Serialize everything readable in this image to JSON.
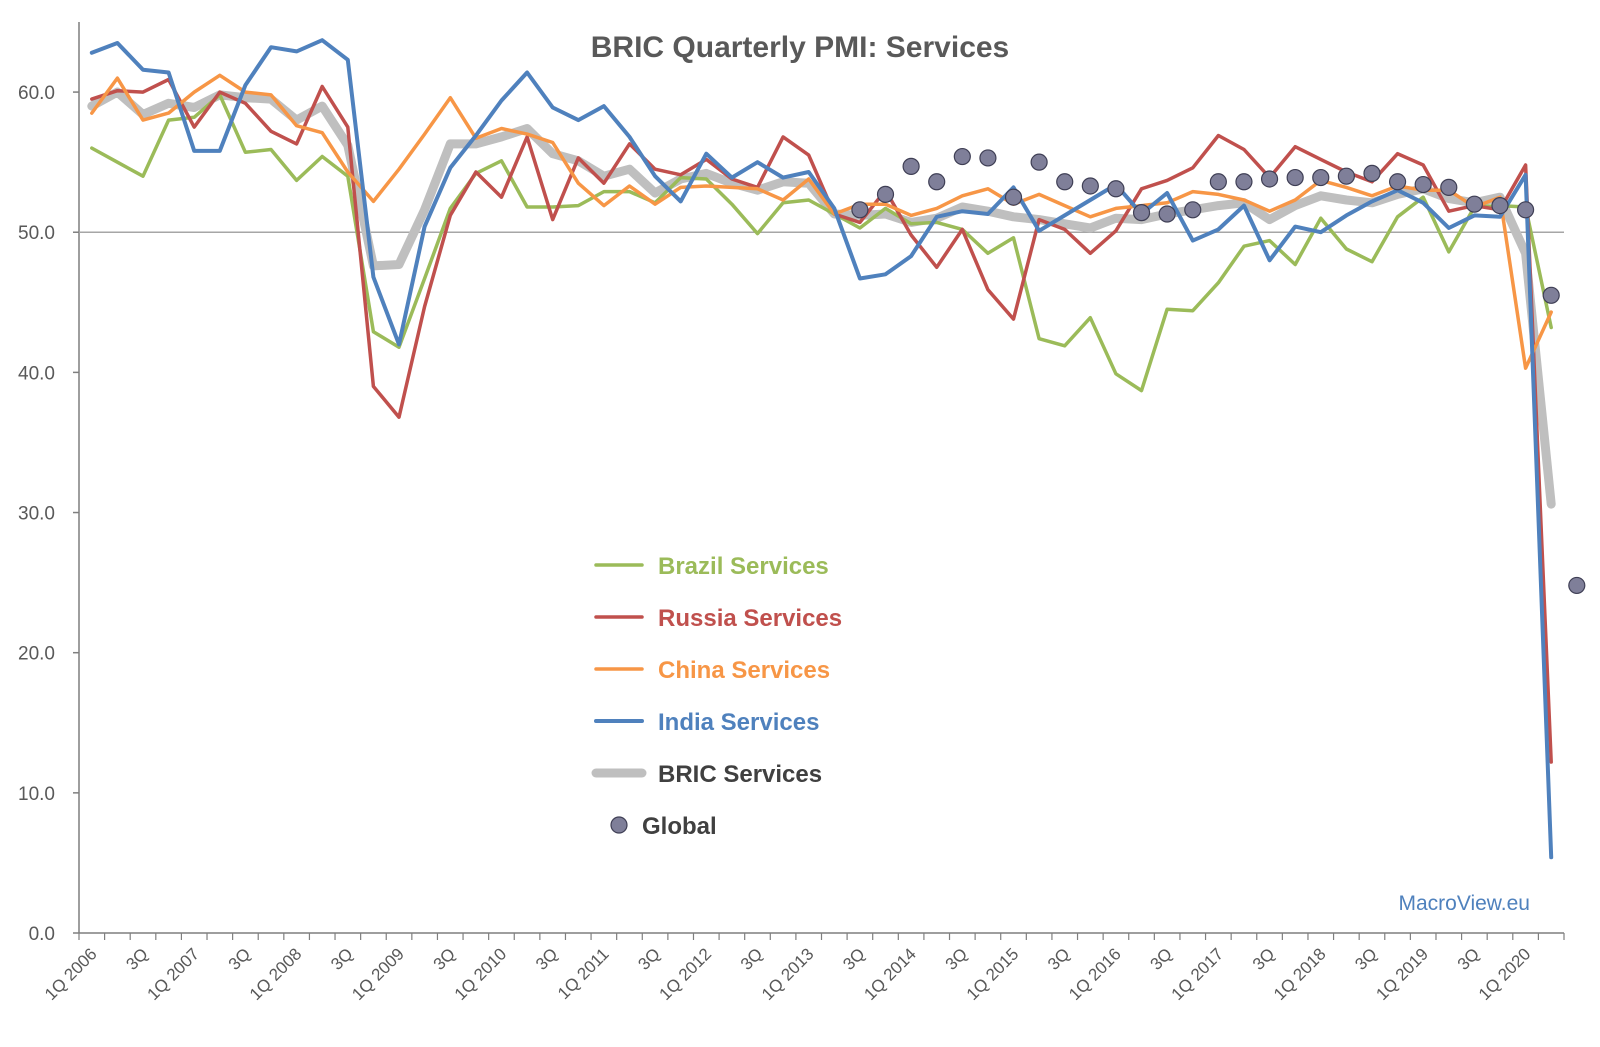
{
  "chart_data": {
    "type": "line",
    "title": "BRIC Quarterly PMI: Services",
    "xlabel": "",
    "ylabel": "",
    "ylim": [
      0,
      65
    ],
    "y_ticks": [
      "0.0",
      "10.0",
      "20.0",
      "30.0",
      "40.0",
      "50.0",
      "60.0"
    ],
    "reference_line": 50,
    "categories": [
      "1Q 2006",
      "2Q",
      "3Q",
      "4Q",
      "1Q 2007",
      "2Q",
      "3Q",
      "4Q",
      "1Q 2008",
      "2Q",
      "3Q",
      "4Q",
      "1Q 2009",
      "2Q",
      "3Q",
      "4Q",
      "1Q 2010",
      "2Q",
      "3Q",
      "4Q",
      "1Q 2011",
      "2Q",
      "3Q",
      "4Q",
      "1Q 2012",
      "2Q",
      "3Q",
      "4Q",
      "1Q 2013",
      "2Q",
      "3Q",
      "4Q",
      "1Q 2014",
      "2Q",
      "3Q",
      "4Q",
      "1Q 2015",
      "2Q",
      "3Q",
      "4Q",
      "1Q 2016",
      "2Q",
      "3Q",
      "4Q",
      "1Q 2017",
      "2Q",
      "3Q",
      "4Q",
      "1Q 2018",
      "2Q",
      "3Q",
      "4Q",
      "1Q 2019",
      "2Q",
      "3Q",
      "4Q",
      "1Q 2020",
      "2Q"
    ],
    "x_tick_labels": [
      "1Q 2006",
      "3Q",
      "1Q 2007",
      "3Q",
      "1Q 2008",
      "3Q",
      "1Q 2009",
      "3Q",
      "1Q 2010",
      "3Q",
      "1Q 2011",
      "3Q",
      "1Q 2012",
      "3Q",
      "1Q 2013",
      "3Q",
      "1Q 2014",
      "3Q",
      "1Q 2015",
      "3Q",
      "1Q 2016",
      "3Q",
      "1Q 2017",
      "3Q",
      "1Q 2018",
      "3Q",
      "1Q 2019",
      "3Q",
      "1Q 2020"
    ],
    "series": [
      {
        "name": "Brazil Services",
        "color": "#9BBB59",
        "width": 3.5,
        "values": [
          56.0,
          55.0,
          54.0,
          58.0,
          58.2,
          59.8,
          55.7,
          55.9,
          53.7,
          55.4,
          54.0,
          42.9,
          41.8,
          46.7,
          51.7,
          54.2,
          55.1,
          51.8,
          51.8,
          51.9,
          52.9,
          52.9,
          52.1,
          53.9,
          53.8,
          52.0,
          49.9,
          52.1,
          52.3,
          51.3,
          50.3,
          51.7,
          50.6,
          50.7,
          50.2,
          48.5,
          49.6,
          42.4,
          41.9,
          43.9,
          39.9,
          38.7,
          44.5,
          44.4,
          46.4,
          49.0,
          49.4,
          47.7,
          51.0,
          48.8,
          47.9,
          51.1,
          52.5,
          48.6,
          51.8,
          51.9,
          51.8,
          43.2
        ]
      },
      {
        "name": "Russia Services",
        "color": "#C0504D",
        "width": 3.5,
        "values": [
          59.5,
          60.1,
          60.0,
          60.9,
          57.5,
          60.0,
          59.2,
          57.2,
          56.3,
          60.4,
          57.5,
          39.0,
          36.8,
          44.7,
          51.2,
          54.3,
          52.5,
          56.8,
          50.9,
          55.3,
          53.5,
          56.3,
          54.5,
          54.1,
          55.2,
          53.8,
          53.2,
          56.8,
          55.5,
          51.3,
          50.7,
          53.0,
          49.8,
          47.5,
          50.2,
          45.9,
          43.8,
          50.9,
          50.2,
          48.5,
          50.1,
          53.1,
          53.7,
          54.6,
          56.9,
          55.9,
          53.9,
          56.1,
          55.2,
          54.3,
          53.6,
          55.6,
          54.8,
          51.5,
          51.9,
          51.6,
          54.8,
          12.2
        ]
      },
      {
        "name": "China Services",
        "color": "#F79646",
        "width": 3.5,
        "values": [
          58.5,
          61.0,
          58.0,
          58.5,
          60.0,
          61.2,
          60.0,
          59.8,
          57.6,
          57.1,
          54.3,
          52.2,
          54.5,
          57.0,
          59.6,
          56.7,
          57.4,
          57.0,
          56.4,
          53.5,
          51.9,
          53.3,
          52.0,
          53.2,
          53.3,
          53.2,
          53.1,
          52.3,
          53.8,
          51.3,
          52.0,
          52.0,
          51.2,
          51.7,
          52.6,
          53.1,
          52.0,
          52.7,
          51.9,
          51.1,
          51.7,
          51.9,
          52.1,
          52.9,
          52.7,
          52.3,
          51.5,
          52.3,
          53.7,
          53.2,
          52.6,
          53.3,
          53.0,
          53.0,
          51.8,
          52.5,
          40.3,
          44.3
        ]
      },
      {
        "name": "India Services",
        "color": "#4F81BD",
        "width": 4,
        "values": [
          62.8,
          63.5,
          61.6,
          61.4,
          55.8,
          55.8,
          60.5,
          63.2,
          62.9,
          63.7,
          62.3,
          46.8,
          42.0,
          50.4,
          54.6,
          56.9,
          59.4,
          61.4,
          58.9,
          58.0,
          59.0,
          56.8,
          54.0,
          52.2,
          55.6,
          53.9,
          55.0,
          53.9,
          54.3,
          51.7,
          46.7,
          47.0,
          48.3,
          51.1,
          51.5,
          51.3,
          53.2,
          50.1,
          51.2,
          52.3,
          53.4,
          51.3,
          52.8,
          49.4,
          50.2,
          51.9,
          48.0,
          50.4,
          50.0,
          51.2,
          52.2,
          53.0,
          52.1,
          50.3,
          51.2,
          51.1,
          54.1,
          5.4
        ]
      },
      {
        "name": "BRIC Services",
        "color": "#BFBFBF",
        "width": 9,
        "values": [
          59.0,
          60.0,
          58.4,
          59.2,
          58.9,
          59.8,
          59.6,
          59.5,
          58.0,
          59.0,
          56.2,
          47.6,
          47.7,
          51.6,
          56.3,
          56.3,
          56.8,
          57.4,
          55.6,
          55.1,
          54.0,
          54.5,
          52.8,
          53.8,
          54.2,
          53.5,
          53.0,
          53.6,
          53.5,
          51.3,
          51.2,
          51.3,
          50.7,
          51.0,
          51.8,
          51.5,
          51.1,
          50.9,
          50.6,
          50.3,
          51.0,
          50.9,
          51.3,
          51.6,
          51.9,
          52.1,
          50.9,
          51.9,
          52.6,
          52.3,
          52.1,
          52.7,
          53.1,
          52.4,
          52.1,
          52.5,
          48.5,
          30.6
        ]
      },
      {
        "name": "Global",
        "color": "#7F7F99",
        "points": [
          [
            30,
            51.6
          ],
          [
            31,
            52.7
          ],
          [
            32,
            54.7
          ],
          [
            33,
            53.6
          ],
          [
            34,
            55.4
          ],
          [
            35,
            55.3
          ],
          [
            36,
            52.5
          ],
          [
            37,
            55.0
          ],
          [
            38,
            53.6
          ],
          [
            39,
            53.3
          ],
          [
            40,
            53.1
          ],
          [
            41,
            51.4
          ],
          [
            42,
            51.3
          ],
          [
            43,
            51.6
          ],
          [
            44,
            53.6
          ],
          [
            45,
            53.6
          ],
          [
            46,
            53.8
          ],
          [
            47,
            53.9
          ],
          [
            48,
            53.9
          ],
          [
            49,
            54.0
          ],
          [
            50,
            54.2
          ],
          [
            51,
            53.6
          ],
          [
            52,
            53.4
          ],
          [
            53,
            53.2
          ],
          [
            54,
            52.0
          ],
          [
            55,
            51.9
          ],
          [
            56,
            51.6
          ],
          [
            57,
            45.5
          ],
          [
            58,
            24.8
          ]
        ]
      }
    ],
    "legend": {
      "position": "center-left",
      "items": [
        "Brazil Services",
        "Russia Services",
        "China Services",
        "India Services",
        "BRIC Services",
        "Global"
      ]
    },
    "source": "MacroView.eu",
    "source_color": "#4F81BD",
    "grid": false
  }
}
